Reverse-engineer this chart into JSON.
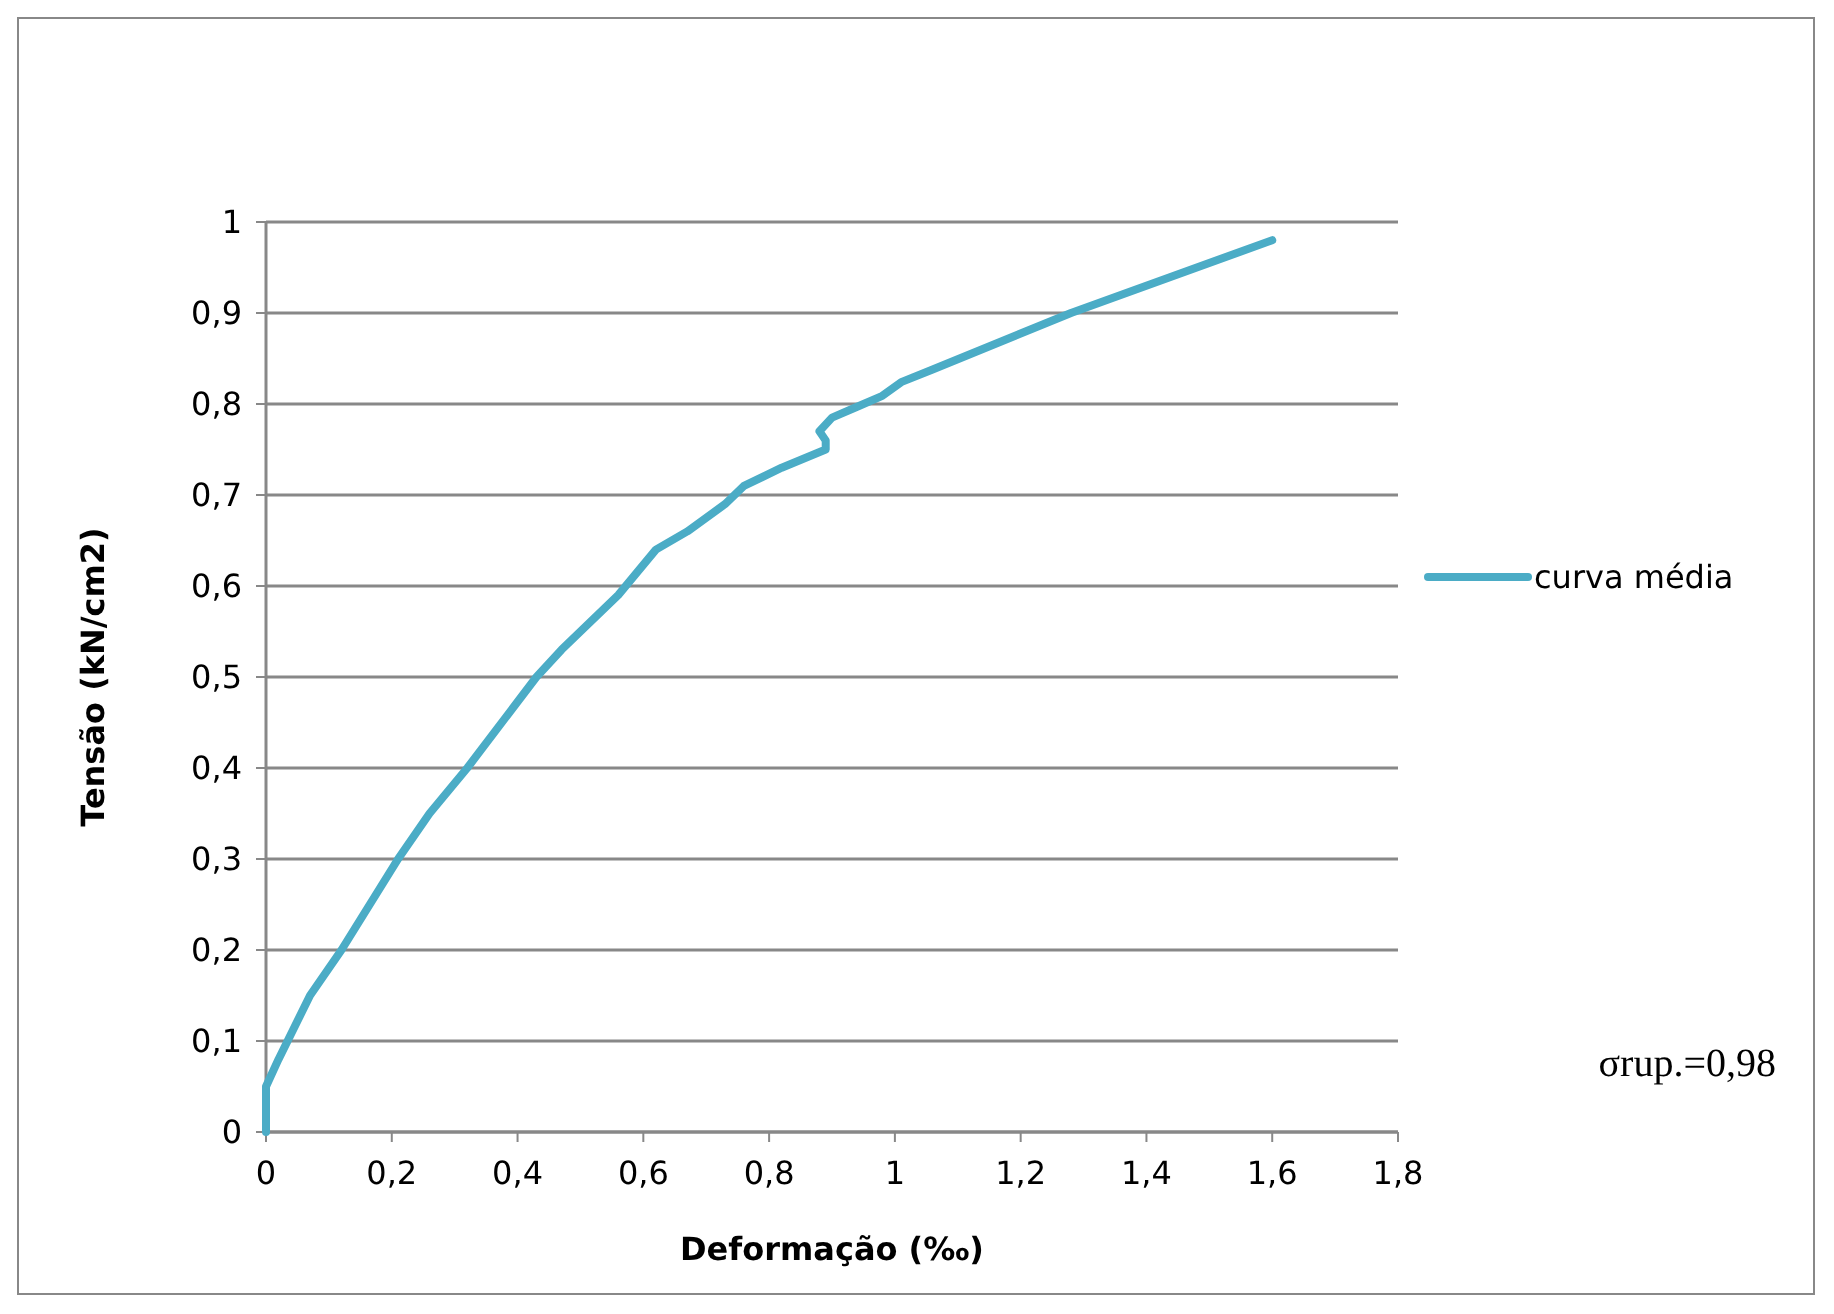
{
  "chart_data": {
    "type": "line",
    "xlabel": "Deformação (‰)",
    "ylabel": "Tensão (kN/cm2)",
    "xlim": [
      0,
      1.8
    ],
    "xticks": [
      {
        "value": 0,
        "label": "0"
      },
      {
        "value": 0.2,
        "label": "0,2"
      },
      {
        "value": 0.4,
        "label": "0,4"
      },
      {
        "value": 0.6,
        "label": "0,6"
      },
      {
        "value": 0.8,
        "label": "0,8"
      },
      {
        "value": 1,
        "label": "1"
      },
      {
        "value": 1.2,
        "label": "1,2"
      },
      {
        "value": 1.4,
        "label": "1,4"
      },
      {
        "value": 1.6,
        "label": "1,6"
      },
      {
        "value": 1.8,
        "label": "1,8"
      }
    ],
    "ylim": [
      0,
      1
    ],
    "yticks": [
      {
        "value": 0,
        "label": "0"
      },
      {
        "value": 0.1,
        "label": "0,1"
      },
      {
        "value": 0.2,
        "label": "0,2"
      },
      {
        "value": 0.3,
        "label": "0,3"
      },
      {
        "value": 0.4,
        "label": "0,4"
      },
      {
        "value": 0.5,
        "label": "0,5"
      },
      {
        "value": 0.6,
        "label": "0,6"
      },
      {
        "value": 0.7,
        "label": "0,7"
      },
      {
        "value": 0.8,
        "label": "0,8"
      },
      {
        "value": 0.9,
        "label": "0,9"
      },
      {
        "value": 1,
        "label": "1"
      }
    ],
    "grid": "y",
    "legend": "right",
    "marker": "none",
    "line_style": "solid",
    "series": [
      {
        "name": "curva média",
        "color": "#4bacc6",
        "x": [
          0,
          0,
          0.02,
          0.07,
          0.12,
          0.21,
          0.26,
          0.32,
          0.43,
          0.47,
          0.56,
          0.62,
          0.67,
          0.73,
          0.76,
          0.82,
          0.89,
          0.89,
          0.88,
          0.9,
          0.94,
          0.98,
          1.01,
          1.06,
          1.28,
          1.6
        ],
        "values": [
          0,
          0.05,
          0.08,
          0.15,
          0.2,
          0.3,
          0.35,
          0.4,
          0.5,
          0.53,
          0.59,
          0.64,
          0.66,
          0.69,
          0.71,
          0.73,
          0.75,
          0.76,
          0.77,
          0.785,
          0.797,
          0.809,
          0.824,
          0.838,
          0.9,
          0.98
        ]
      }
    ],
    "annotations": [
      "σrup.=0,98"
    ]
  }
}
